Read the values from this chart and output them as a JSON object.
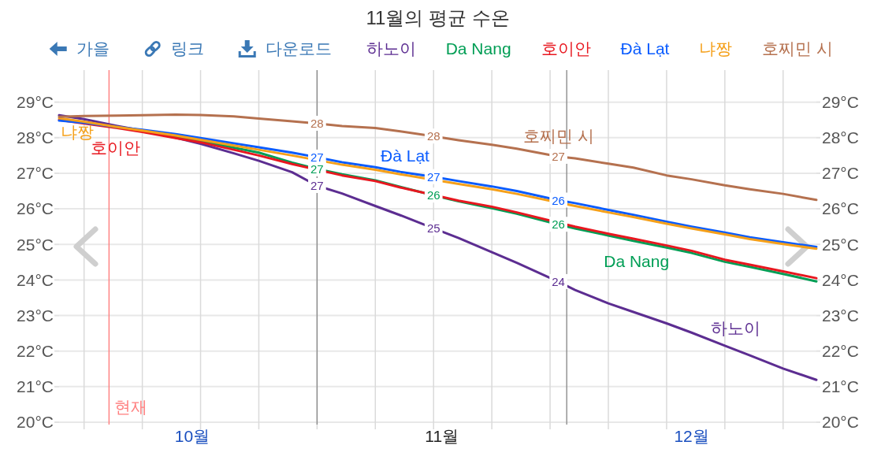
{
  "chart_data": {
    "type": "line",
    "title": "11월의 평균 수온",
    "legend": "top",
    "grid": true,
    "x": [
      "--10-01",
      "--10-04",
      "--10-08",
      "--10-11",
      "--10-15",
      "--10-18",
      "--10-22",
      "--10-25",
      "--10-29",
      "--11-01",
      "--11-04",
      "--11-08",
      "--11-11",
      "--11-15",
      "--11-18",
      "--11-22",
      "--11-25",
      "--11-30",
      "--12-02",
      "--12-06",
      "--12-09",
      "--12-13",
      "--12-16",
      "--12-20",
      "--12-23",
      "--12-27",
      "--12-31"
    ],
    "xlim": [
      "--10-01",
      "--12-31"
    ],
    "xticks": [
      {
        "value": "--10-04",
        "label": null
      },
      {
        "value": "--10-11",
        "label": null
      },
      {
        "value": "--10-18",
        "label": null
      },
      {
        "value": "--10-25",
        "label": null
      },
      {
        "value": "--11-01",
        "label": null
      },
      {
        "value": "--11-08",
        "label": null
      },
      {
        "value": "--11-15",
        "label": null
      },
      {
        "value": "--11-22",
        "label": null
      },
      {
        "value": "--11-29",
        "label": null
      },
      {
        "value": "--12-06",
        "label": null
      },
      {
        "value": "--12-13",
        "label": null
      },
      {
        "value": "--12-20",
        "label": null
      },
      {
        "value": "--12-27",
        "label": null
      },
      {
        "value": "--10-17",
        "label": "10월"
      },
      {
        "value": "--11-16",
        "label": "11월"
      },
      {
        "value": "--12-16",
        "label": "12월"
      }
    ],
    "ylim": [
      20,
      29.9
    ],
    "yticks": [
      {
        "value": 20,
        "label": "20°C"
      },
      {
        "value": 21,
        "label": "21°C"
      },
      {
        "value": 22,
        "label": "22°C"
      },
      {
        "value": 23,
        "label": "23°C"
      },
      {
        "value": 24,
        "label": "24°C"
      },
      {
        "value": 25,
        "label": "25°C"
      },
      {
        "value": 26,
        "label": "26°C"
      },
      {
        "value": 27,
        "label": "27°C"
      },
      {
        "value": 28,
        "label": "28°C"
      },
      {
        "value": 29,
        "label": "29°C"
      }
    ],
    "y2lim": [
      20,
      29.9
    ],
    "y2ticks": [
      {
        "value": 20,
        "label": "20°C"
      },
      {
        "value": 21,
        "label": "21°C"
      },
      {
        "value": 22,
        "label": "22°C"
      },
      {
        "value": 23,
        "label": "23°C"
      },
      {
        "value": 24,
        "label": "24°C"
      },
      {
        "value": 25,
        "label": "25°C"
      },
      {
        "value": 26,
        "label": "26°C"
      },
      {
        "value": 27,
        "label": "27°C"
      },
      {
        "value": 28,
        "label": "28°C"
      },
      {
        "value": 29,
        "label": "29°C"
      }
    ],
    "series": [
      {
        "name": "하노이",
        "color": "#5c2d91",
        "values": [
          28.63,
          28.52,
          28.33,
          28.2,
          28.0,
          27.83,
          27.56,
          27.35,
          27.03,
          26.65,
          26.43,
          26.08,
          25.82,
          25.45,
          25.18,
          24.78,
          24.48,
          23.95,
          23.72,
          23.34,
          23.1,
          22.78,
          22.52,
          22.15,
          21.88,
          21.51,
          21.19
        ],
        "value_labels": [
          null,
          null,
          null,
          null,
          null,
          null,
          null,
          null,
          null,
          "27",
          null,
          null,
          null,
          "25",
          null,
          null,
          null,
          "24",
          null,
          null,
          null,
          null,
          null,
          null,
          null,
          null,
          null
        ]
      },
      {
        "name": "Da Nang",
        "color": "#009e55",
        "values": [
          null,
          null,
          null,
          null,
          28.02,
          27.91,
          27.72,
          27.58,
          27.3,
          27.12,
          26.97,
          26.8,
          26.62,
          26.38,
          26.21,
          26.02,
          25.86,
          25.56,
          25.45,
          25.25,
          25.1,
          24.91,
          24.76,
          24.51,
          24.37,
          24.17,
          23.96
        ],
        "value_labels": [
          null,
          null,
          null,
          null,
          null,
          null,
          null,
          null,
          null,
          "27",
          null,
          null,
          null,
          "26",
          null,
          null,
          null,
          "26",
          null,
          null,
          null,
          null,
          null,
          null,
          null,
          null,
          null
        ]
      },
      {
        "name": "호이안",
        "color": "#e8171f",
        "x": [
          "--10-01",
          "--10-04",
          "--10-08",
          "--10-11",
          "--10-15",
          "--10-18",
          "--10-22",
          "--10-25",
          "--10-29",
          "--11-04",
          "--11-08",
          "--11-11",
          "--11-18",
          "--11-22",
          "--11-25",
          "--12-02",
          "--12-06",
          "--12-09",
          "--12-13",
          "--12-16",
          "--12-20",
          "--12-23",
          "--12-27",
          "--12-31"
        ],
        "values": [
          28.5,
          28.4,
          28.27,
          28.16,
          27.99,
          27.87,
          27.66,
          27.5,
          27.26,
          26.94,
          26.78,
          26.6,
          26.23,
          26.06,
          25.9,
          25.5,
          25.3,
          25.16,
          24.97,
          24.82,
          24.57,
          24.43,
          24.24,
          24.05
        ]
      },
      {
        "name": "Đà Lạt",
        "color": "#0a5cff",
        "values": [
          28.48,
          28.42,
          28.3,
          28.22,
          28.1,
          27.99,
          27.84,
          27.73,
          27.58,
          27.45,
          27.31,
          27.17,
          27.04,
          26.9,
          26.78,
          26.63,
          26.5,
          26.24,
          26.16,
          25.97,
          25.83,
          25.64,
          25.5,
          25.33,
          25.2,
          25.06,
          24.93
        ],
        "value_labels": [
          null,
          null,
          null,
          null,
          null,
          null,
          null,
          null,
          null,
          "27",
          null,
          null,
          null,
          "27",
          null,
          null,
          null,
          "26",
          null,
          null,
          null,
          null,
          null,
          null,
          null,
          null,
          null
        ]
      },
      {
        "name": "냐짱",
        "color": "#f5a01a",
        "x": [
          "--10-01",
          "--10-04",
          "--10-08",
          "--10-11",
          "--10-15",
          "--10-18",
          "--10-22",
          "--10-25",
          "--10-29",
          "--11-04",
          "--11-08",
          "--11-11",
          "--11-18",
          "--11-22",
          "--11-25",
          "--12-02",
          "--12-06",
          "--12-09",
          "--12-13",
          "--12-16",
          "--12-20",
          "--12-23",
          "--12-27",
          "--12-31"
        ],
        "values": [
          28.55,
          28.45,
          28.3,
          28.2,
          28.06,
          27.94,
          27.78,
          27.66,
          27.5,
          27.24,
          27.1,
          26.97,
          26.7,
          26.55,
          26.42,
          26.08,
          25.9,
          25.77,
          25.58,
          25.45,
          25.28,
          25.15,
          25.01,
          24.88
        ]
      },
      {
        "name": "호찌민 시",
        "color": "#b5714f",
        "values": [
          28.59,
          28.61,
          28.62,
          28.63,
          28.65,
          28.64,
          28.6,
          28.54,
          28.46,
          28.4,
          28.33,
          28.27,
          28.18,
          28.04,
          27.93,
          27.8,
          27.69,
          27.47,
          27.42,
          27.27,
          27.16,
          26.94,
          26.83,
          26.66,
          26.55,
          26.42,
          26.25
        ],
        "value_labels": [
          null,
          null,
          null,
          null,
          null,
          null,
          null,
          null,
          null,
          "28",
          null,
          null,
          null,
          "28",
          null,
          null,
          null,
          "27",
          null,
          null,
          null,
          null,
          null,
          null,
          null,
          null,
          null
        ]
      }
    ],
    "ref_lines": [
      {
        "axis": "x",
        "value": "--10-07",
        "label": "현재",
        "color": "#ff7f7f"
      },
      {
        "axis": "x",
        "value": "--11-01",
        "color": "#8c8c8c"
      },
      {
        "axis": "x",
        "value": "--12-01",
        "color": "#8c8c8c"
      }
    ],
    "annotations": [
      {
        "text": "하노이",
        "x": "--12-20",
        "y": 22.15
      },
      {
        "text": "Da Nang",
        "x": "--12-09",
        "y": 25.1
      },
      {
        "text": "호이안",
        "x": "--10-08",
        "y": 28.27
      },
      {
        "text": "Đà Lạt",
        "x": "--11-11",
        "y": 27.04
      },
      {
        "text": "냐짱",
        "x": "--10-01",
        "y": 28.55
      },
      {
        "text": "호찌민 시",
        "x": "--11-30",
        "y": 27.47
      },
      "가을",
      "링크",
      "다운로드"
    ]
  }
}
